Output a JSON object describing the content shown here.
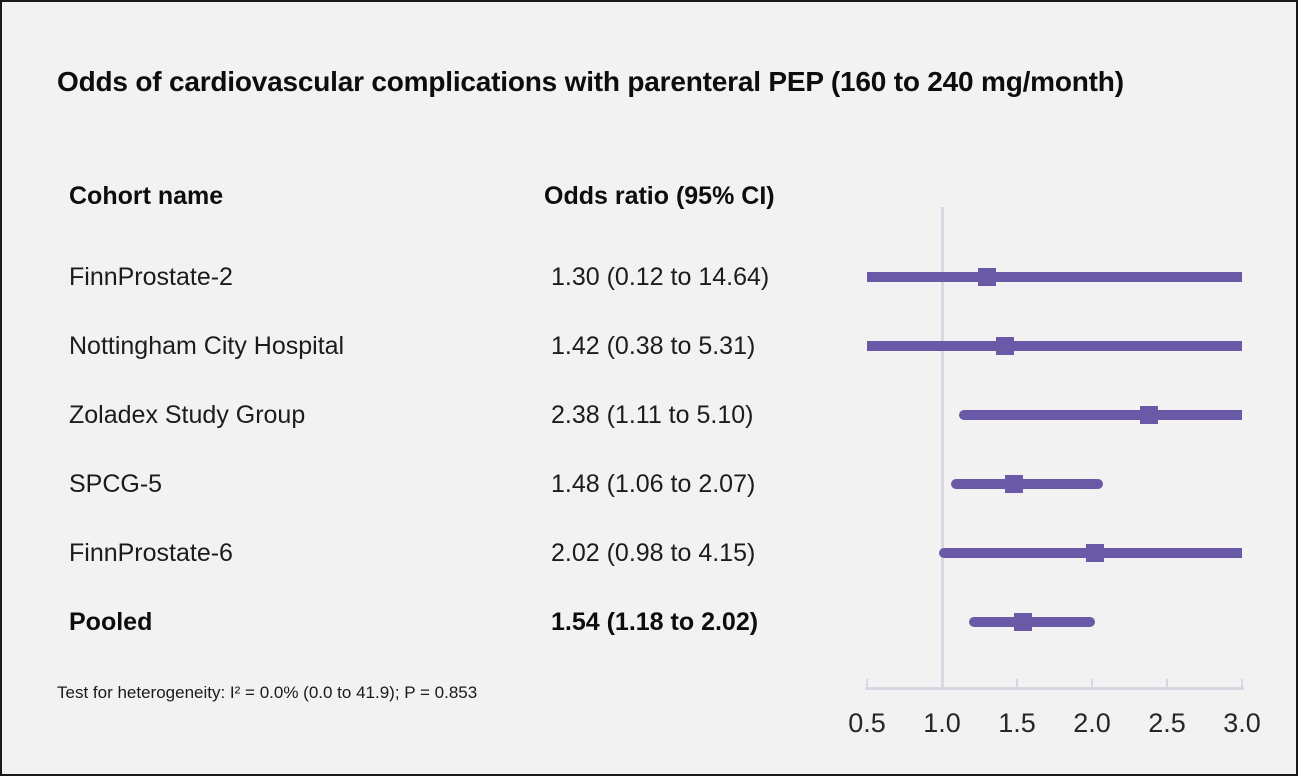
{
  "title": "Odds of cardiovascular complications with parenteral PEP (160 to 240 mg/month)",
  "columns": {
    "cohort": "Cohort name",
    "odds_ratio": "Odds ratio (95% CI)"
  },
  "footnote": "Test for heterogeneity: I² = 0.0% (0.0 to 41.9); P = 0.853",
  "colors": {
    "background": "#f2f2f2",
    "marker": "#6a59a6",
    "axis_line": "#d6d9e1",
    "text": "#111111"
  },
  "chart_data": {
    "type": "forest",
    "title": "Odds of cardiovascular complications with parenteral PEP (160 to 240 mg/month)",
    "xlabel": "",
    "ylabel": "",
    "axis": {
      "min": 0.5,
      "max": 3.0,
      "ticks": [
        0.5,
        1.0,
        1.5,
        2.0,
        2.5,
        3.0
      ],
      "tick_labels": [
        "0.5",
        "1.0",
        "1.5",
        "2.0",
        "2.5",
        "3.0"
      ],
      "reference_line": 1.0,
      "grid": false
    },
    "rows": [
      {
        "label": "FinnProstate-2",
        "or_text": "1.30 (0.12 to 14.64)",
        "estimate": 1.3,
        "ci_low": 0.12,
        "ci_high": 14.64,
        "bold": false
      },
      {
        "label": "Nottingham City Hospital",
        "or_text": "1.42 (0.38 to 5.31)",
        "estimate": 1.42,
        "ci_low": 0.38,
        "ci_high": 5.31,
        "bold": false
      },
      {
        "label": "Zoladex Study Group",
        "or_text": "2.38 (1.11 to 5.10)",
        "estimate": 2.38,
        "ci_low": 1.11,
        "ci_high": 5.1,
        "bold": false
      },
      {
        "label": "SPCG-5",
        "or_text": "1.48 (1.06 to 2.07)",
        "estimate": 1.48,
        "ci_low": 1.06,
        "ci_high": 2.07,
        "bold": false
      },
      {
        "label": "FinnProstate-6",
        "or_text": "2.02 (0.98 to 4.15)",
        "estimate": 2.02,
        "ci_low": 0.98,
        "ci_high": 4.15,
        "bold": false
      },
      {
        "label": "Pooled",
        "or_text": "1.54 (1.18 to 2.02)",
        "estimate": 1.54,
        "ci_low": 1.18,
        "ci_high": 2.02,
        "bold": true
      }
    ]
  }
}
